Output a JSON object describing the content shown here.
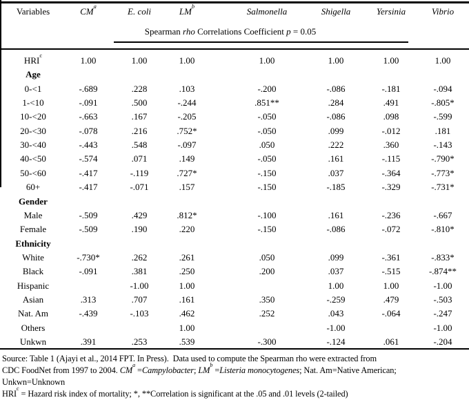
{
  "colors": {
    "text": "#000000",
    "background": "#ffffff"
  },
  "table": {
    "variables_header": "Variables",
    "columns": [
      {
        "label": "CM",
        "sup": "a",
        "italic": true
      },
      {
        "label": "E. coli",
        "italic": true
      },
      {
        "label": "LM",
        "sup": "b",
        "italic": true
      },
      {
        "label": "Salmonella",
        "italic": true
      },
      {
        "label": "Shigella",
        "italic": true
      },
      {
        "label": "Yersinia",
        "italic": true
      },
      {
        "label": "Vibrio",
        "italic": true
      }
    ],
    "subheader_segments": [
      {
        "t": "Spearman "
      },
      {
        "t": "rho",
        "i": true
      },
      {
        "t": " Correlations Coefficient "
      },
      {
        "t": "p",
        "i": true
      },
      {
        "t": " = 0.05"
      }
    ],
    "rows": [
      {
        "label": "HRI",
        "sup": "c",
        "values": [
          "1.00",
          "1.00",
          "1.00",
          "1.00",
          "1.00",
          "1.00",
          "1.00"
        ]
      },
      {
        "label": "Age",
        "section": true,
        "values": [
          "",
          "",
          "",
          "",
          "",
          "",
          ""
        ]
      },
      {
        "label": "0-<1",
        "values": [
          "-.689",
          ".228",
          ".103",
          "-.200",
          "-.086",
          "-.181",
          "-.094"
        ]
      },
      {
        "label": "1-<10",
        "values": [
          "-.091",
          ".500",
          "-.244",
          ".851**",
          ".284",
          ".491",
          "-.805*"
        ]
      },
      {
        "label": "10-<20",
        "values": [
          "-.663",
          ".167",
          "-.205",
          "-.050",
          "-.086",
          ".098",
          "-.599"
        ]
      },
      {
        "label": "20-<30",
        "values": [
          "-.078",
          ".216",
          ".752*",
          "-.050",
          ".099",
          "-.012",
          ".181"
        ]
      },
      {
        "label": "30-<40",
        "values": [
          "-.443",
          ".548",
          "-.097",
          ".050",
          ".222",
          ".360",
          "-.143"
        ]
      },
      {
        "label": "40-<50",
        "values": [
          "-.574",
          ".071",
          ".149",
          "-.050",
          ".161",
          "-.115",
          "-.790*"
        ]
      },
      {
        "label": "50-<60",
        "values": [
          "-.417",
          "-.119",
          ".727*",
          "-.150",
          ".037",
          "-.364",
          "-.773*"
        ]
      },
      {
        "label": "60+",
        "values": [
          "-.417",
          "-.071",
          ".157",
          "-.150",
          "-.185",
          "-.329",
          "-.731*"
        ]
      },
      {
        "label": "Gender",
        "section": true,
        "values": [
          "",
          "",
          "",
          "",
          "",
          "",
          ""
        ]
      },
      {
        "label": "Male",
        "values": [
          "-.509",
          ".429",
          ".812*",
          "-.100",
          ".161",
          "-.236",
          "-.667"
        ]
      },
      {
        "label": "Female",
        "values": [
          "-.509",
          ".190",
          ".220",
          "-.150",
          "-.086",
          "-.072",
          "-.810*"
        ]
      },
      {
        "label": "Ethnicity",
        "section": true,
        "values": [
          "",
          "",
          "",
          "",
          "",
          "",
          ""
        ]
      },
      {
        "label": "White",
        "values": [
          "-.730*",
          ".262",
          ".261",
          ".050",
          ".099",
          "-.361",
          "-.833*"
        ]
      },
      {
        "label": "Black",
        "values": [
          "-.091",
          ".381",
          ".250",
          ".200",
          ".037",
          "-.515",
          "-.874**"
        ]
      },
      {
        "label": "Hispanic",
        "values": [
          "",
          "-1.00",
          "1.00",
          "",
          "1.00",
          "1.00",
          "-1.00"
        ]
      },
      {
        "label": "Asian",
        "values": [
          ".313",
          ".707",
          ".161",
          ".350",
          "-.259",
          ".479",
          "-.503"
        ]
      },
      {
        "label": "Nat. Am",
        "values": [
          "-.439",
          "-.103",
          ".462",
          ".252",
          ".043",
          "-.064",
          "-.247"
        ]
      },
      {
        "label": "Others",
        "values": [
          "",
          "",
          "1.00",
          "",
          "-1.00",
          "",
          "-1.00"
        ]
      },
      {
        "label": "Unkwn",
        "values": [
          ".391",
          ".253",
          ".539",
          "-.300",
          "-.124",
          ".061",
          "-.204"
        ]
      }
    ]
  },
  "footnotes": [
    [
      {
        "t": "Source: Table 1 (Ajayi et al., 2014 FPT. In Press).  Data used to compute the Spearman rho were extracted from"
      }
    ],
    [
      {
        "t": "CDC FoodNet from 1997 to 2004. "
      },
      {
        "t": "CM",
        "i": true
      },
      {
        "t": "a",
        "i": true,
        "sup": true
      },
      {
        "t": " ="
      },
      {
        "t": "Campylobacter",
        "i": true
      },
      {
        "t": "; "
      },
      {
        "t": "LM",
        "i": true
      },
      {
        "t": "b",
        "i": true,
        "sup": true
      },
      {
        "t": " ="
      },
      {
        "t": "Listeria monocytogenes",
        "i": true
      },
      {
        "t": "; Nat. Am=Native American;"
      }
    ],
    [
      {
        "t": "Unkwn=Unknown"
      }
    ],
    [
      {
        "t": "HRI"
      },
      {
        "t": "c",
        "sup": true
      },
      {
        "t": " = Hazard risk index of mortality; *, **Correlation is significant at the .05 and .01 levels (2-tailed)"
      }
    ]
  ]
}
